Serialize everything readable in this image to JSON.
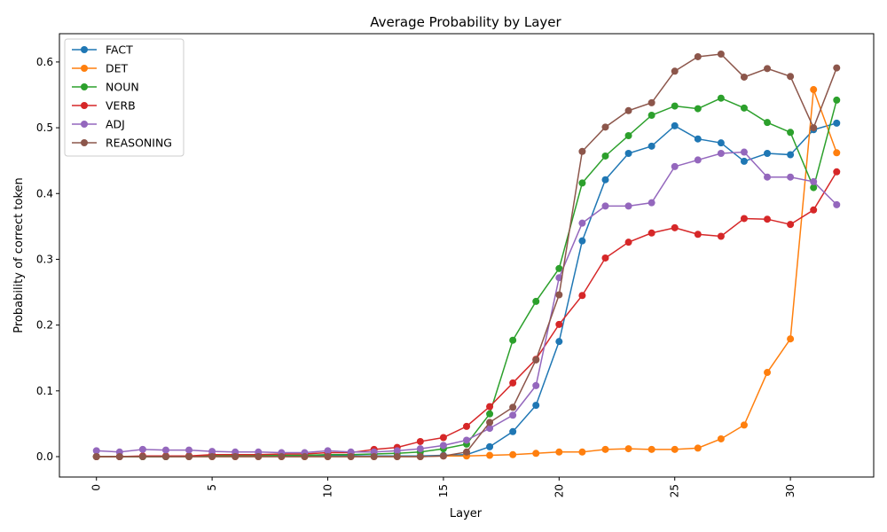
{
  "chart_data": {
    "type": "line",
    "title": "Average Probability by Layer",
    "xlabel": "Layer",
    "ylabel": "Probability of correct token",
    "xlim": [
      -1.6,
      33.6
    ],
    "ylim": [
      -0.031,
      0.643
    ],
    "xticks": [
      0,
      5,
      10,
      15,
      20,
      25,
      30
    ],
    "xtick_rotation": 90,
    "yticks": [
      0.0,
      0.1,
      0.2,
      0.3,
      0.4,
      0.5,
      0.6
    ],
    "ytick_labels": [
      "0.0",
      "0.1",
      "0.2",
      "0.3",
      "0.4",
      "0.5",
      "0.6"
    ],
    "grid": false,
    "legend_position": "upper-left",
    "x": [
      0,
      1,
      2,
      3,
      4,
      5,
      6,
      7,
      8,
      9,
      10,
      11,
      12,
      13,
      14,
      15,
      16,
      17,
      18,
      19,
      20,
      21,
      22,
      23,
      24,
      25,
      26,
      27,
      28,
      29,
      30,
      31,
      32
    ],
    "series": [
      {
        "name": "FACT",
        "color": "#1f77b4",
        "values": [
          0.0,
          0.0,
          0.0,
          0.0,
          0.0,
          0.001,
          0.001,
          0.001,
          0.001,
          0.001,
          0.001,
          0.001,
          0.001,
          0.001,
          0.001,
          0.002,
          0.003,
          0.015,
          0.038,
          0.078,
          0.175,
          0.328,
          0.421,
          0.461,
          0.472,
          0.503,
          0.483,
          0.477,
          0.449,
          0.461,
          0.459,
          0.497,
          0.507
        ]
      },
      {
        "name": "DET",
        "color": "#ff7f0e",
        "values": [
          0.0,
          0.0,
          0.0,
          0.0,
          0.0,
          0.0,
          0.0,
          0.0,
          0.0,
          0.0,
          0.0,
          0.0,
          0.0,
          0.0,
          0.0,
          0.001,
          0.001,
          0.002,
          0.003,
          0.005,
          0.007,
          0.007,
          0.011,
          0.012,
          0.011,
          0.011,
          0.013,
          0.027,
          0.048,
          0.128,
          0.179,
          0.558,
          0.462
        ]
      },
      {
        "name": "NOUN",
        "color": "#2ca02c",
        "values": [
          0.0,
          0.0,
          0.0,
          0.0,
          0.001,
          0.001,
          0.002,
          0.002,
          0.002,
          0.002,
          0.003,
          0.003,
          0.004,
          0.005,
          0.007,
          0.012,
          0.019,
          0.065,
          0.177,
          0.236,
          0.286,
          0.416,
          0.457,
          0.488,
          0.519,
          0.533,
          0.529,
          0.545,
          0.53,
          0.508,
          0.493,
          0.409,
          0.542
        ]
      },
      {
        "name": "VERB",
        "color": "#d62728",
        "values": [
          0.0,
          0.0,
          0.001,
          0.001,
          0.001,
          0.003,
          0.003,
          0.003,
          0.004,
          0.004,
          0.006,
          0.006,
          0.011,
          0.014,
          0.023,
          0.029,
          0.046,
          0.076,
          0.112,
          0.148,
          0.201,
          0.245,
          0.302,
          0.326,
          0.34,
          0.348,
          0.338,
          0.335,
          0.362,
          0.361,
          0.353,
          0.375,
          0.433
        ]
      },
      {
        "name": "ADJ",
        "color": "#9467bd",
        "values": [
          0.009,
          0.007,
          0.011,
          0.01,
          0.01,
          0.008,
          0.007,
          0.007,
          0.006,
          0.006,
          0.009,
          0.007,
          0.007,
          0.009,
          0.012,
          0.017,
          0.025,
          0.043,
          0.063,
          0.108,
          0.272,
          0.355,
          0.381,
          0.381,
          0.386,
          0.441,
          0.451,
          0.461,
          0.463,
          0.425,
          0.425,
          0.418,
          0.383
        ]
      },
      {
        "name": "REASONING",
        "color": "#8c564b",
        "values": [
          0.0,
          0.0,
          0.0,
          0.0,
          0.0,
          0.0,
          0.0,
          0.0,
          0.0,
          0.0,
          0.0,
          0.0,
          0.0,
          0.0,
          0.0,
          0.001,
          0.007,
          0.052,
          0.075,
          0.147,
          0.246,
          0.464,
          0.501,
          0.526,
          0.538,
          0.586,
          0.608,
          0.612,
          0.577,
          0.59,
          0.578,
          0.5,
          0.591
        ]
      }
    ]
  }
}
